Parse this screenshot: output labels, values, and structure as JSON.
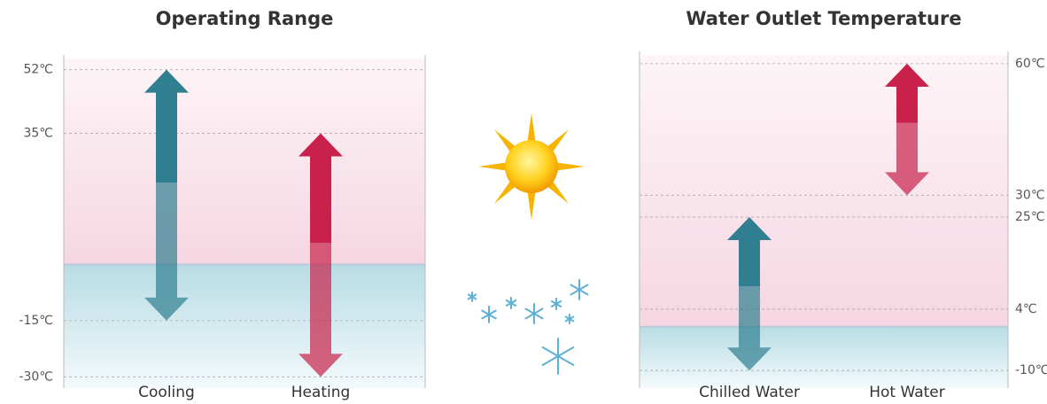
{
  "chart_data": [
    {
      "type": "range",
      "title": "Operating Range",
      "categories": [
        "Cooling",
        "Heating"
      ],
      "low": [
        -15,
        -30
      ],
      "high": [
        52,
        35
      ],
      "colors": [
        "#2f7f90",
        "#c8214b"
      ],
      "ylim": [
        -33,
        55
      ],
      "yticks": [
        {
          "value": 52,
          "label": "52℃"
        },
        {
          "value": 35,
          "label": "35℃"
        },
        {
          "value": -15,
          "label": "-15℃"
        },
        {
          "value": -30,
          "label": "-30℃"
        }
      ],
      "axis_side": "left",
      "grid": true
    },
    {
      "type": "range",
      "title": "Water Outlet Temperature",
      "categories": [
        "Chilled Water",
        "Hot Water"
      ],
      "low": [
        -10,
        30
      ],
      "high": [
        25,
        60
      ],
      "colors": [
        "#2f7f90",
        "#c8214b"
      ],
      "ylim": [
        -14,
        62
      ],
      "yticks": [
        {
          "value": 60,
          "label": "60℃"
        },
        {
          "value": 30,
          "label": "30℃"
        },
        {
          "value": 25,
          "label": "25℃"
        },
        {
          "value": 4,
          "label": "4℃"
        },
        {
          "value": -10,
          "label": "-10℃"
        }
      ],
      "axis_side": "right",
      "grid": true
    }
  ]
}
